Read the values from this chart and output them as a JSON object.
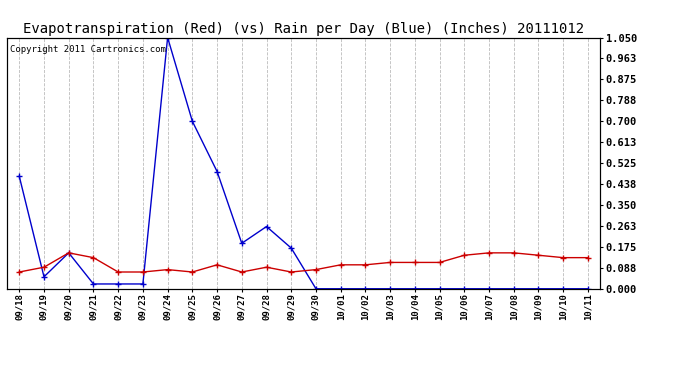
{
  "title": "Evapotranspiration (Red) (vs) Rain per Day (Blue) (Inches) 20111012",
  "copyright": "Copyright 2011 Cartronics.com",
  "x_labels": [
    "09/18",
    "09/19",
    "09/20",
    "09/21",
    "09/22",
    "09/23",
    "09/24",
    "09/25",
    "09/26",
    "09/27",
    "09/28",
    "09/29",
    "09/30",
    "10/01",
    "10/02",
    "10/03",
    "10/04",
    "10/05",
    "10/06",
    "10/07",
    "10/08",
    "10/09",
    "10/10",
    "10/11"
  ],
  "blue_data": [
    0.47,
    0.05,
    0.15,
    0.02,
    0.02,
    0.02,
    1.05,
    0.7,
    0.49,
    0.19,
    0.26,
    0.17,
    0.0,
    0.0,
    0.0,
    0.0,
    0.0,
    0.0,
    0.0,
    0.0,
    0.0,
    0.0,
    0.0,
    0.0
  ],
  "red_data": [
    0.07,
    0.09,
    0.15,
    0.13,
    0.07,
    0.07,
    0.08,
    0.07,
    0.1,
    0.07,
    0.09,
    0.07,
    0.08,
    0.1,
    0.1,
    0.11,
    0.11,
    0.11,
    0.14,
    0.15,
    0.15,
    0.14,
    0.13,
    0.13
  ],
  "y_ticks": [
    0.0,
    0.088,
    0.175,
    0.263,
    0.35,
    0.438,
    0.525,
    0.613,
    0.7,
    0.788,
    0.875,
    0.963,
    1.05
  ],
  "ylim": [
    0.0,
    1.05
  ],
  "blue_color": "#0000cc",
  "red_color": "#cc0000",
  "bg_color": "#ffffff",
  "plot_bg_color": "#ffffff",
  "grid_color": "#bbbbbb",
  "title_fontsize": 10,
  "copyright_fontsize": 6.5,
  "tick_fontsize": 7.5,
  "xtick_fontsize": 6.5
}
